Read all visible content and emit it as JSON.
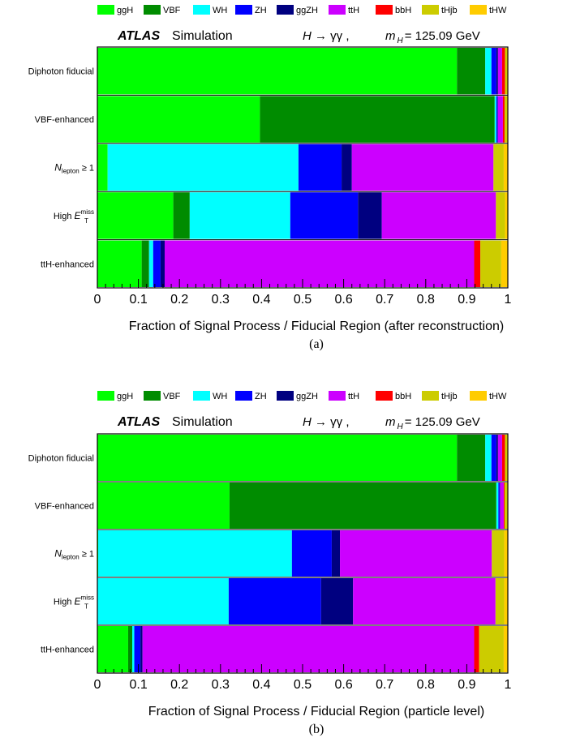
{
  "processes": [
    {
      "name": "ggH",
      "color": "#00ff00"
    },
    {
      "name": "VBF",
      "color": "#008c00"
    },
    {
      "name": "WH",
      "color": "#00ffff"
    },
    {
      "name": "ZH",
      "color": "#0000ff"
    },
    {
      "name": "ggZH",
      "color": "#000080"
    },
    {
      "name": "ttH",
      "color": "#cc00ff"
    },
    {
      "name": "bbH",
      "color": "#ff0000"
    },
    {
      "name": "tHjb",
      "color": "#cccc00"
    },
    {
      "name": "tHW",
      "color": "#ffcc00"
    }
  ],
  "chart_data": [
    {
      "type": "bar",
      "orientation": "horizontal-stacked",
      "panel_label": "(a)",
      "header": {
        "atlas": "ATLAS",
        "simulation": "Simulation",
        "process": "H → γγ ,",
        "mass_label": "m",
        "mass_sub": "H",
        "mass_value": "= 125.09 GeV"
      },
      "xlabel": "Fraction of Signal Process / Fiducial Region (after reconstruction)",
      "xlim": [
        0,
        1
      ],
      "xticks": [
        "0",
        "0.1",
        "0.2",
        "0.3",
        "0.4",
        "0.5",
        "0.6",
        "0.7",
        "0.8",
        "0.9",
        "1"
      ],
      "categories": [
        {
          "label": "Diphoton fiducial"
        },
        {
          "label": "VBF-enhanced"
        },
        {
          "label": "N",
          "sub": "lepton",
          "suffix": " ≥ 1"
        },
        {
          "label": "High E",
          "sub": "T",
          "sup": "miss"
        },
        {
          "label": "ttH-enhanced"
        }
      ],
      "series": [
        {
          "name": "ggH",
          "values": [
            0.876,
            0.396,
            0.025,
            0.185,
            0.108
          ]
        },
        {
          "name": "VBF",
          "values": [
            0.069,
            0.572,
            0.0,
            0.04,
            0.018
          ]
        },
        {
          "name": "WH",
          "values": [
            0.015,
            0.004,
            0.465,
            0.245,
            0.01
          ]
        },
        {
          "name": "ZH",
          "values": [
            0.012,
            0.003,
            0.105,
            0.165,
            0.018
          ]
        },
        {
          "name": "ggZH",
          "values": [
            0.004,
            0.001,
            0.025,
            0.058,
            0.01
          ]
        },
        {
          "name": "ttH",
          "values": [
            0.01,
            0.012,
            0.345,
            0.278,
            0.754
          ]
        },
        {
          "name": "bbH",
          "values": [
            0.007,
            0.004,
            0.0,
            0.0,
            0.015
          ]
        },
        {
          "name": "tHjb",
          "values": [
            0.005,
            0.006,
            0.025,
            0.022,
            0.051
          ]
        },
        {
          "name": "tHW",
          "values": [
            0.002,
            0.002,
            0.01,
            0.007,
            0.016
          ]
        }
      ]
    },
    {
      "type": "bar",
      "orientation": "horizontal-stacked",
      "panel_label": "(b)",
      "header": {
        "atlas": "ATLAS",
        "simulation": "Simulation",
        "process": "H → γγ ,",
        "mass_label": "m",
        "mass_sub": "H",
        "mass_value": "= 125.09 GeV"
      },
      "xlabel": "Fraction of Signal Process / Fiducial Region (particle level)",
      "xlim": [
        0,
        1
      ],
      "xticks": [
        "0",
        "0.1",
        "0.2",
        "0.3",
        "0.4",
        "0.5",
        "0.6",
        "0.7",
        "0.8",
        "0.9",
        "1"
      ],
      "categories": [
        {
          "label": "Diphoton fiducial"
        },
        {
          "label": "VBF-enhanced"
        },
        {
          "label": "N",
          "sub": "lepton",
          "suffix": " ≥ 1"
        },
        {
          "label": "High E",
          "sub": "T",
          "sup": "miss"
        },
        {
          "label": "ttH-enhanced"
        }
      ],
      "series": [
        {
          "name": "ggH",
          "values": [
            0.876,
            0.322,
            0.002,
            0.0,
            0.075
          ]
        },
        {
          "name": "VBF",
          "values": [
            0.069,
            0.65,
            0.0,
            0.0,
            0.01
          ]
        },
        {
          "name": "WH",
          "values": [
            0.015,
            0.005,
            0.472,
            0.32,
            0.005
          ]
        },
        {
          "name": "ZH",
          "values": [
            0.012,
            0.003,
            0.097,
            0.225,
            0.015
          ]
        },
        {
          "name": "ggZH",
          "values": [
            0.004,
            0.001,
            0.02,
            0.078,
            0.005
          ]
        },
        {
          "name": "ttH",
          "values": [
            0.01,
            0.009,
            0.37,
            0.347,
            0.808
          ]
        },
        {
          "name": "bbH",
          "values": [
            0.007,
            0.002,
            0.0,
            0.0,
            0.012
          ]
        },
        {
          "name": "tHjb",
          "values": [
            0.005,
            0.006,
            0.03,
            0.021,
            0.06
          ]
        },
        {
          "name": "tHW",
          "values": [
            0.002,
            0.002,
            0.009,
            0.009,
            0.01
          ]
        }
      ]
    }
  ]
}
